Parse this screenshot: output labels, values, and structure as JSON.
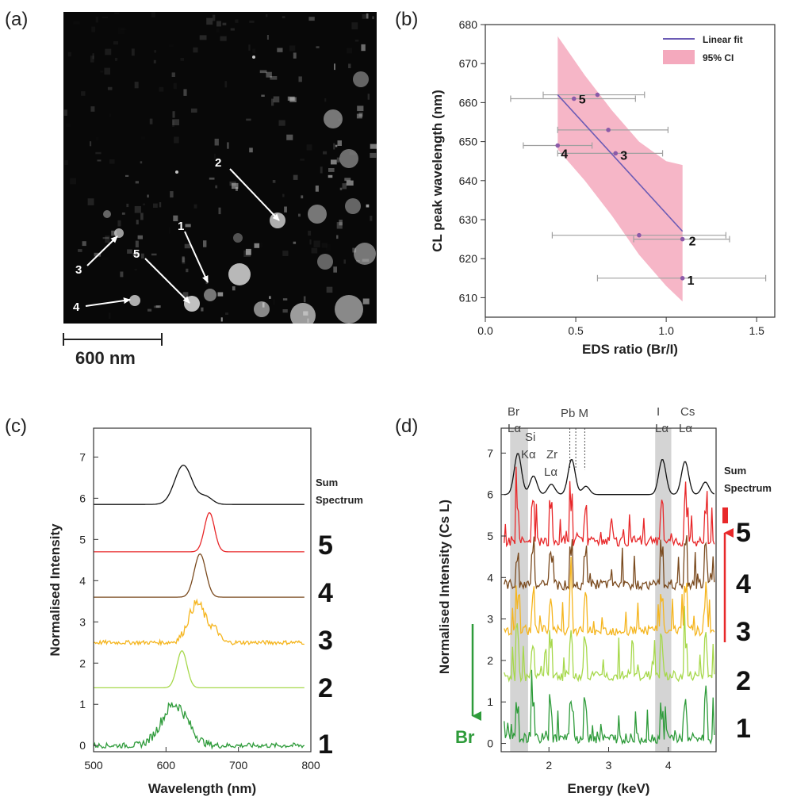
{
  "panels": {
    "a": {
      "label": "(a)",
      "scalebar": "600 nm",
      "markers": [
        "1",
        "2",
        "3",
        "4",
        "5"
      ]
    },
    "b": {
      "label": "(b)"
    },
    "c": {
      "label": "(c)"
    },
    "d": {
      "label": "(d)"
    }
  },
  "chart_data": [
    {
      "panel": "b",
      "type": "scatter",
      "xlabel": "EDS ratio (Br/I)",
      "ylabel": "CL peak wavelength (nm)",
      "xlim": [
        0,
        1.6
      ],
      "ylim": [
        605,
        680
      ],
      "xticks": [
        "0.0",
        "0.5",
        "1.0",
        "1.5"
      ],
      "yticks": [
        "610",
        "620",
        "630",
        "640",
        "650",
        "660",
        "670",
        "680"
      ],
      "legend": {
        "position": "top-right",
        "entries": [
          "Linear fit",
          "95% CI"
        ]
      },
      "colors": {
        "points": "#8b5aa8",
        "fit": "#6b5bb5",
        "ci": "#f4a9bd",
        "errorbars": "#a0a0a0"
      },
      "points": [
        {
          "label": "1",
          "x": 1.09,
          "y": 615,
          "xerr": [
            0.62,
            1.55
          ]
        },
        {
          "label": "2",
          "x": 1.09,
          "y": 625,
          "xerr": [
            0.82,
            1.35
          ]
        },
        {
          "label": "",
          "x": 0.85,
          "y": 626,
          "xerr": [
            0.37,
            1.33
          ]
        },
        {
          "label": "3",
          "x": 0.72,
          "y": 647,
          "xerr": [
            0.4,
            0.98
          ]
        },
        {
          "label": "4",
          "x": 0.4,
          "y": 649,
          "xerr": [
            0.21,
            0.59
          ]
        },
        {
          "label": "",
          "x": 0.68,
          "y": 653,
          "xerr": [
            0.4,
            1.01
          ]
        },
        {
          "label": "5",
          "x": 0.49,
          "y": 661,
          "xerr": [
            0.14,
            0.83
          ]
        },
        {
          "label": "",
          "x": 0.62,
          "y": 662,
          "xerr": [
            0.32,
            0.88
          ]
        }
      ],
      "fit": {
        "x": [
          0.4,
          1.09
        ],
        "y": [
          662,
          627
        ]
      },
      "ci": {
        "x": [
          0.4,
          0.55,
          0.7,
          0.85,
          1.0,
          1.09
        ],
        "upper": [
          677,
          667,
          658,
          650,
          645,
          644
        ],
        "lower": [
          648,
          640,
          631,
          621,
          613,
          609
        ]
      }
    },
    {
      "panel": "c",
      "type": "line",
      "xlabel": "Wavelength (nm)",
      "ylabel": "Normalised Intensity",
      "xlim": [
        500,
        800
      ],
      "ylim": [
        -0.15,
        7.7
      ],
      "xticks": [
        "500",
        "600",
        "700",
        "800"
      ],
      "yticks": [
        "0",
        "1",
        "2",
        "3",
        "4",
        "5",
        "6",
        "7"
      ],
      "series": [
        {
          "name": "1",
          "baseline": 0,
          "peak": 612,
          "height": 1.0,
          "width": 18,
          "noise": 0.12,
          "color": "#2e9b3a"
        },
        {
          "name": "2",
          "baseline": 1.4,
          "peak": 622,
          "height": 0.9,
          "width": 7,
          "noise": 0.0,
          "color": "#a6d84a"
        },
        {
          "name": "3",
          "baseline": 2.5,
          "peak": 643,
          "height": 0.95,
          "width": 12,
          "noise": 0.1,
          "color": "#f5b51e"
        },
        {
          "name": "4",
          "baseline": 3.6,
          "peak": 647,
          "height": 1.05,
          "width": 8,
          "noise": 0.0,
          "color": "#7a4a1e"
        },
        {
          "name": "5",
          "baseline": 4.7,
          "peak": 660,
          "height": 0.95,
          "width": 7,
          "noise": 0.0,
          "color": "#e8282a"
        },
        {
          "name": "Sum Spectrum",
          "baseline": 5.85,
          "peak": 624,
          "height": 0.95,
          "width": 12,
          "noise": 0.0,
          "color": "#111111"
        }
      ],
      "right_labels": [
        "Sum",
        "Spectrum",
        "5",
        "4",
        "3",
        "2",
        "1"
      ]
    },
    {
      "panel": "d",
      "type": "line",
      "xlabel": "Energy (keV)",
      "ylabel": "Normalised Intensity (Cs L)",
      "xlim": [
        1.2,
        4.8
      ],
      "ylim": [
        -0.2,
        7.6
      ],
      "xticks": [
        "2",
        "3",
        "4"
      ],
      "yticks": [
        "0",
        "1",
        "2",
        "3",
        "4",
        "5",
        "6",
        "7"
      ],
      "shaded_regions": [
        [
          1.35,
          1.65
        ],
        [
          3.78,
          4.05
        ]
      ],
      "dashed_lines": [
        2.35,
        2.45,
        2.6
      ],
      "peak_labels": {
        "br_line1": "Br",
        "br_line2": "Lα",
        "si_line1": "Si",
        "si_line2": "Kα",
        "zr_line1": "Zr",
        "zr_line2": "Lα",
        "pbm": "Pb M",
        "i_line1": "I",
        "i_line2": "Lα",
        "cs_line1": "Cs",
        "cs_line2": "Lα"
      },
      "series": [
        {
          "name": "1",
          "baseline": 0.0,
          "color": "#2e9b3a"
        },
        {
          "name": "2",
          "baseline": 1.5,
          "color": "#a6d84a"
        },
        {
          "name": "3",
          "baseline": 2.6,
          "color": "#f5b51e"
        },
        {
          "name": "4",
          "baseline": 3.7,
          "color": "#7a4a1e"
        },
        {
          "name": "5",
          "baseline": 4.75,
          "color": "#e8282a"
        },
        {
          "name": "Sum Spectrum",
          "baseline": 6.0,
          "color": "#111111"
        }
      ],
      "right_labels": [
        "Sum",
        "Spectrum",
        "5",
        "4",
        "3",
        "2",
        "1"
      ],
      "arrow_label": "Br"
    }
  ]
}
